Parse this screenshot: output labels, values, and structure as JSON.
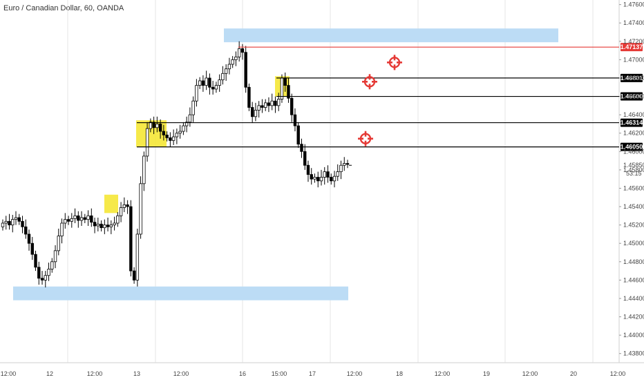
{
  "header": {
    "title": "Euro / Canadian Dollar, 60, OANDA"
  },
  "colors": {
    "bull": "#ffffff",
    "bear": "#000000",
    "zone": "#bcdcf5",
    "highlight": "#f5e52a",
    "red": "#e53935",
    "black": "#000000"
  },
  "chart_data": {
    "type": "candlestick",
    "title": "Euro / Canadian Dollar, 60, OANDA",
    "ylim": [
      1.437,
      1.4765
    ],
    "y_ticks": [
      "1.47600",
      "1.47400",
      "1.47200",
      "1.47000",
      "1.46800",
      "1.46600",
      "1.46400",
      "1.46200",
      "1.46000",
      "1.45800",
      "1.45600",
      "1.45400",
      "1.45200",
      "1.45000",
      "1.44800",
      "1.44600",
      "1.44400",
      "1.44200",
      "1.44000",
      "1.43800"
    ],
    "x_labels": [
      "12:00",
      "12",
      "12:00",
      "13",
      "12:00",
      "16",
      "15:00",
      "17",
      "12:00",
      "18",
      "12:00",
      "19",
      "12:00",
      "20",
      "12:00"
    ],
    "price_levels": [
      {
        "label": "1.47137",
        "value": 1.47137,
        "color": "#e53935"
      },
      {
        "label": "1.46801",
        "value": 1.46801,
        "color": "#000000"
      },
      {
        "label": "1.46600",
        "value": 1.466,
        "color": "#000000"
      },
      {
        "label": "1.46314",
        "value": 1.46314,
        "color": "#000000"
      },
      {
        "label": "1.46050",
        "value": 1.4605,
        "color": "#000000"
      }
    ],
    "current": {
      "price": "1.45850",
      "countdown": "53:15"
    },
    "zones": [
      {
        "kind": "supply",
        "y_top": 1.4734,
        "y_bottom": 1.4719
      },
      {
        "kind": "demand",
        "y_top": 1.4453,
        "y_bottom": 1.4438
      }
    ],
    "candles_close": [
      1.4522,
      1.4524,
      1.452,
      1.4526,
      1.4528,
      1.4524,
      1.4518,
      1.451,
      1.45,
      1.4488,
      1.4474,
      1.4462,
      1.446,
      1.4465,
      1.4472,
      1.448,
      1.4492,
      1.4508,
      1.4522,
      1.4526,
      1.4524,
      1.4527,
      1.453,
      1.4525,
      1.4528,
      1.4526,
      1.453,
      1.4523,
      1.4519,
      1.4521,
      1.4517,
      1.452,
      1.4518,
      1.452,
      1.4522,
      1.453,
      1.4539,
      1.4542,
      1.454,
      1.447,
      1.446,
      1.451,
      1.4565,
      1.4595,
      1.4625,
      1.4632,
      1.4626,
      1.463,
      1.4622,
      1.4618,
      1.4615,
      1.4612,
      1.4616,
      1.462,
      1.4622,
      1.4628,
      1.4632,
      1.464,
      1.4655,
      1.4672,
      1.4677,
      1.4672,
      1.468,
      1.467,
      1.4668,
      1.4672,
      1.4678,
      1.4685,
      1.469,
      1.4695,
      1.47,
      1.4703,
      1.4712,
      1.4708,
      1.467,
      1.4648,
      1.4638,
      1.4645,
      1.465,
      1.4648,
      1.4653,
      1.465,
      1.4655,
      1.465,
      1.4657,
      1.468,
      1.4672,
      1.4658,
      1.464,
      1.4628,
      1.4608,
      1.46,
      1.4585,
      1.4575,
      1.457,
      1.4572,
      1.4568,
      1.4572,
      1.4578,
      1.4572,
      1.4568,
      1.4573,
      1.4578,
      1.4585,
      1.4587,
      1.4586
    ],
    "highlight_boxes": [
      {
        "y_top": 1.4553,
        "y_bottom": 1.4533
      },
      {
        "y_top": 1.4634,
        "y_bottom": 1.4605
      },
      {
        "y_top": 1.4682,
        "y_bottom": 1.466
      }
    ],
    "target_markers": [
      {
        "value": 1.4697
      },
      {
        "value": 1.4676
      },
      {
        "value": 1.4614
      }
    ]
  }
}
